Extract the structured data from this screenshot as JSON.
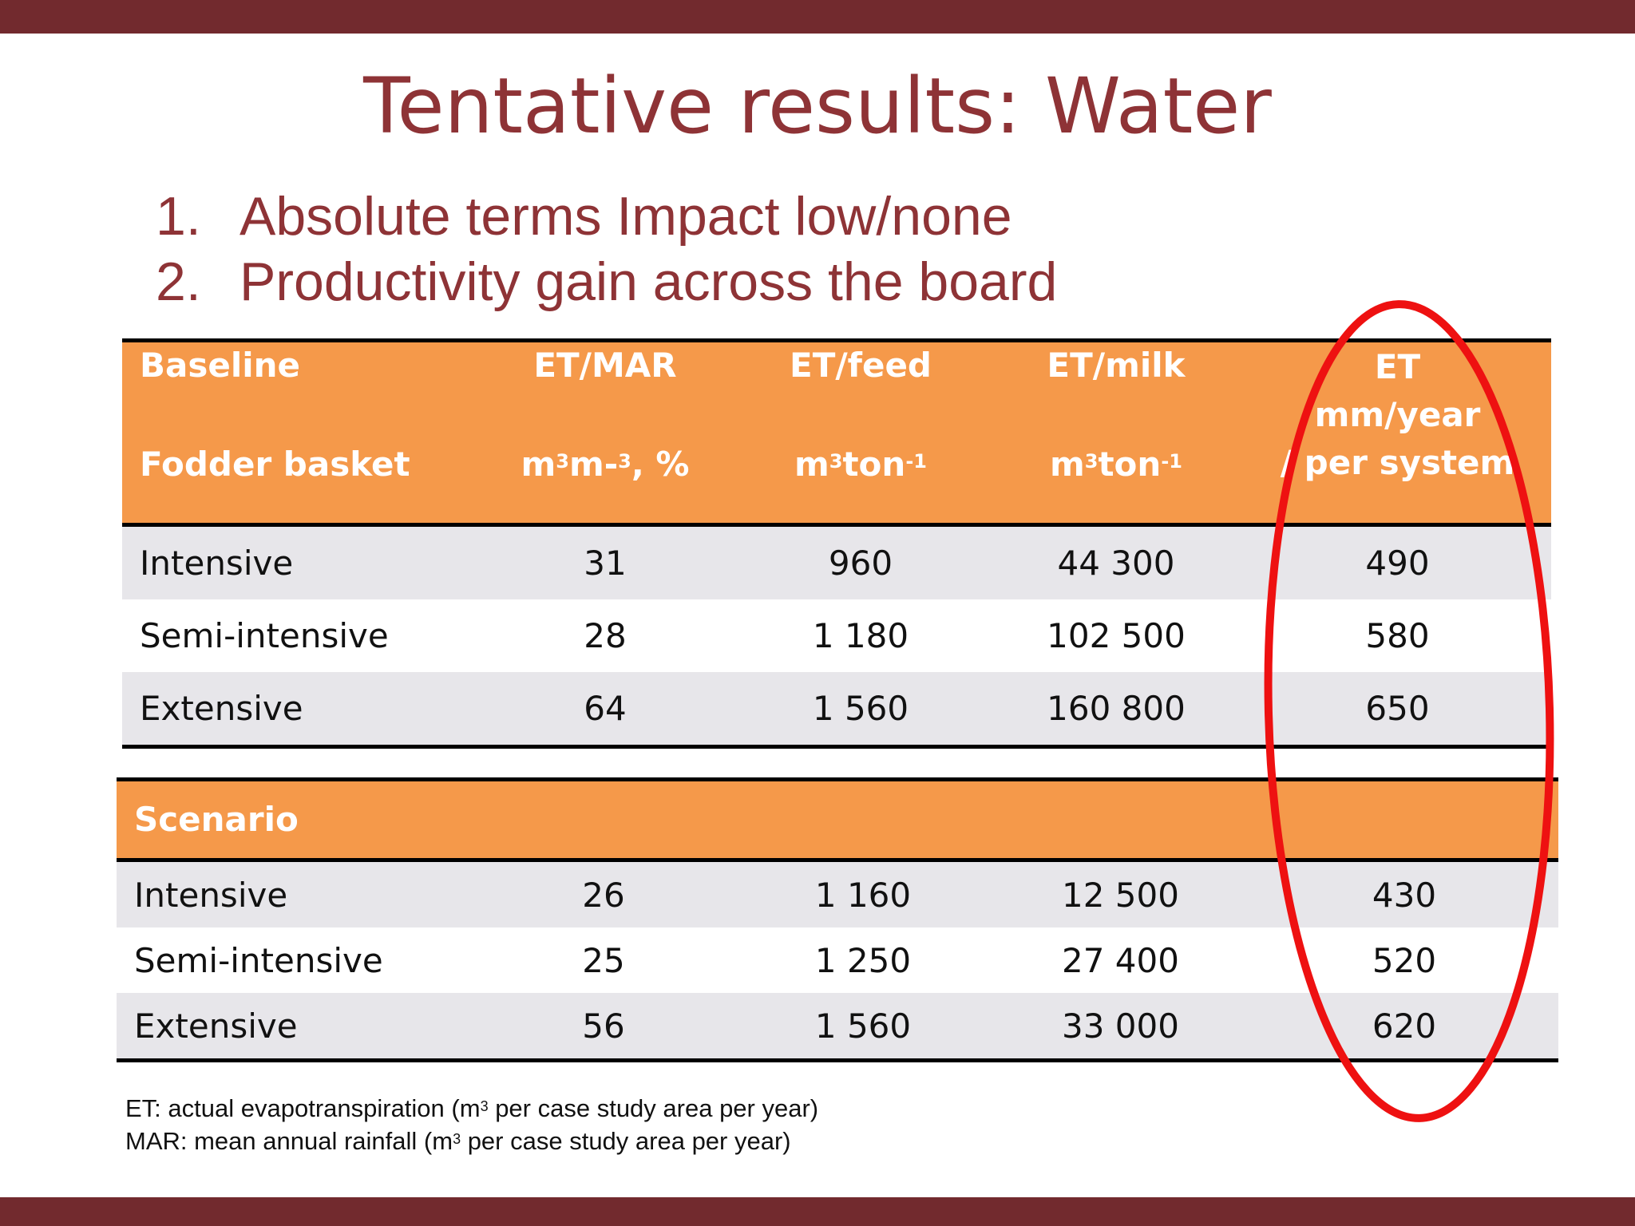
{
  "slide": {
    "title": "Tentative results: Water",
    "bullets": [
      {
        "num": "1.",
        "text": "Absolute terms Impact low/none"
      },
      {
        "num": "2.",
        "text": "Productivity gain across the board"
      }
    ]
  },
  "baseline_table": {
    "header": {
      "col1_line1": "Baseline",
      "col1_line2": "Fodder basket",
      "col2_line1": "ET/MAR",
      "col2_unit_a": "m",
      "col2_unit_sup_a": "3",
      "col2_unit_b": "m-",
      "col2_unit_sup_b": "3",
      "col2_unit_c": ", %",
      "col3_line1": "ET/feed",
      "col3_unit_a": "m",
      "col3_unit_sup_a": "3",
      "col3_unit_b": "ton",
      "col3_unit_sup_b": "-1",
      "col4_line1": "ET/milk",
      "col4_unit_a": "m",
      "col4_unit_sup_a": "3",
      "col4_unit_b": "ton",
      "col4_unit_sup_b": "-1",
      "col5_line1": "ET",
      "col5_line2": "mm/year",
      "col5_line3": "/ per system"
    },
    "rows": [
      {
        "name": "Intensive",
        "et_mar": "31",
        "et_feed": "960",
        "et_milk": "44 300",
        "et": "490"
      },
      {
        "name": "Semi-intensive",
        "et_mar": "28",
        "et_feed": "1 180",
        "et_milk": "102 500",
        "et": "580"
      },
      {
        "name": "Extensive",
        "et_mar": "64",
        "et_feed": "1 560",
        "et_milk": "160 800",
        "et": "650"
      }
    ]
  },
  "scenario_table": {
    "header": "Scenario",
    "rows": [
      {
        "name": "Intensive",
        "et_mar": "26",
        "et_feed": "1 160",
        "et_milk": "12 500",
        "et": "430"
      },
      {
        "name": "Semi-intensive",
        "et_mar": "25",
        "et_feed": "1 250",
        "et_milk": "27 400",
        "et": "520"
      },
      {
        "name": "Extensive",
        "et_mar": "56",
        "et_feed": "1 560",
        "et_milk": "33 000",
        "et": "620"
      }
    ]
  },
  "footnotes": [
    {
      "a": "ET: actual evapotranspiration (m",
      "sup": "3",
      "b": " per case study area per year)"
    },
    {
      "a": "MAR: mean annual rainfall (m",
      "sup": "3",
      "b": " per case study area per year)"
    }
  ],
  "colors": {
    "brand_bar": "#722a2e",
    "title_text": "#8e3336",
    "table_header": "#f5994a",
    "row_shade": "#e7e6ea",
    "highlight_ellipse": "#ee1111"
  }
}
